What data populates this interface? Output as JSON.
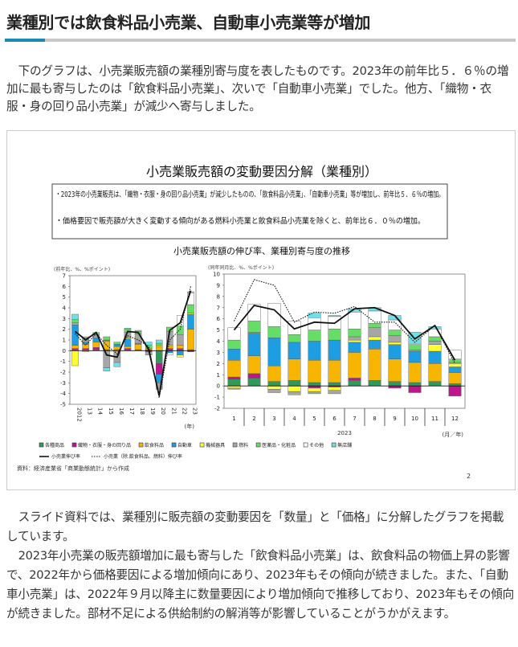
{
  "header": {
    "title": "業種別では飲食料品小売業、自動車小売業等が増加"
  },
  "intro": "下のグラフは、小売業販売額の業種別寄与度を表したものです。2023年の前年比５．６％の増加に最も寄与したのは「飲食料品小売業」、次いで「自動車小売業」でした。他方、「織物・衣服・身の回り品小売業」が減少へ寄与しました。",
  "figure": {
    "title": "小売業販売額の変動要因分解（業種別）",
    "notes": [
      "・2023年の小売業販売は、「織物・衣服・身の回り品小売業」が減少したものの、「飲食料品小売業」、「自動車小売業」等が増加し、前年比５．６％の増加。",
      "・価格要因で販売額が大きく変動する傾向がある燃料小売業と飲食料品小売業を除くと、前年比６．０％の増加。"
    ],
    "subtitle": "小売業販売額の伸び率、業種別寄与度の推移",
    "source": "資料：経済産業省「商業動態統計」から作成",
    "page": "2"
  },
  "chart_data": [
    {
      "type": "bar",
      "stacked": true,
      "unit_label": "(前年比、%、%ポイント)",
      "x_suffix": "(年)",
      "categories": [
        "2012",
        "13",
        "14",
        "15",
        "16",
        "17",
        "18",
        "19",
        "20",
        "21",
        "22",
        "23"
      ],
      "ylim": [
        -5,
        7
      ],
      "yticks": [
        -5,
        -4,
        -3,
        -2,
        -1,
        0,
        1,
        2,
        3,
        4,
        5,
        6,
        7
      ],
      "series": [
        {
          "name": "各種商品",
          "color": "#2e9b5a",
          "values": [
            0.1,
            0.1,
            0.1,
            0.1,
            0.1,
            0.1,
            0.1,
            0.1,
            -1.2,
            0.1,
            0.1,
            0.1
          ]
        },
        {
          "name": "織物・衣服・身の回り品",
          "color": "#c0158f",
          "values": [
            0.1,
            0.1,
            0.2,
            0,
            0,
            0.1,
            0,
            -0.1,
            -1.0,
            0.1,
            0.1,
            -0.1
          ]
        },
        {
          "name": "飲食料品",
          "color": "#f7b500",
          "values": [
            0.3,
            0.4,
            0.5,
            0.8,
            0.3,
            0.2,
            0.5,
            0.1,
            0.4,
            0.2,
            0.3,
            1.9
          ]
        },
        {
          "name": "自動車",
          "color": "#1e9ee0",
          "values": [
            1.9,
            0.2,
            0.4,
            0.1,
            0.2,
            0.7,
            0.1,
            0,
            -0.8,
            -0.2,
            -0.4,
            1.4
          ]
        },
        {
          "name": "機械器具",
          "color": "#ffff33",
          "values": [
            -1.4,
            -0.1,
            0.1,
            0,
            -0.1,
            0.1,
            0,
            0,
            0.1,
            0.1,
            -0.2,
            0.1
          ]
        },
        {
          "name": "燃料",
          "color": "#a6a6a6",
          "values": [
            0.2,
            0.2,
            0.2,
            -1.6,
            -1.0,
            0.5,
            0.9,
            -0.3,
            -0.6,
            1.3,
            1.0,
            0
          ]
        },
        {
          "name": "医薬品・化粧品",
          "color": "#66dd66",
          "values": [
            0.3,
            0.2,
            0.2,
            0.3,
            0.2,
            0.3,
            0.2,
            0.3,
            0.2,
            0.4,
            0.8,
            0.8
          ]
        },
        {
          "name": "その他",
          "color": "#ffffff",
          "values": [
            0,
            0,
            0,
            0,
            0,
            0,
            0,
            0,
            0,
            -0.2,
            1.0,
            1.1
          ]
        },
        {
          "name": "無店舗",
          "color": "#6fe0e8",
          "values": [
            0.5,
            0.1,
            0,
            -0.3,
            -0.4,
            0.1,
            0.1,
            0.3,
            0.3,
            0,
            0,
            0.1
          ]
        }
      ],
      "lines": [
        {
          "name": "小売業伸び率",
          "style": "solid",
          "values": [
            1.8,
            1.0,
            1.7,
            -0.4,
            -0.6,
            1.8,
            1.7,
            0.1,
            -4.2,
            1.9,
            2.6,
            5.6
          ]
        },
        {
          "name": "小売業（除.飲食料品、燃料）伸び率",
          "style": "dotted",
          "values": [
            1.6,
            0.5,
            1.6,
            0.5,
            -0.3,
            1.4,
            1.0,
            0.4,
            -4.4,
            1.0,
            2.0,
            6.0
          ]
        }
      ]
    },
    {
      "type": "bar",
      "stacked": true,
      "unit_label": "(同年同月比、%、%ポイント)",
      "x_suffix": "(月／年)",
      "year_label": "2023",
      "categories": [
        "1",
        "2",
        "3",
        "4",
        "5",
        "6",
        "7",
        "8",
        "9",
        "10",
        "11",
        "12"
      ],
      "ylim": [
        -2,
        10
      ],
      "yticks": [
        -2,
        -1,
        0,
        1,
        2,
        3,
        4,
        5,
        6,
        7,
        8,
        9,
        10
      ],
      "series": [
        {
          "name": "各種商品",
          "color": "#2e9b5a",
          "values": [
            0.6,
            0.7,
            0.4,
            0.5,
            0.3,
            0.3,
            0.5,
            0.5,
            0.4,
            0.3,
            0.4,
            0.2
          ]
        },
        {
          "name": "織物・衣服・身の回り品",
          "color": "#c0158f",
          "values": [
            0.2,
            0.4,
            0,
            0,
            -0.2,
            -0.1,
            0.2,
            0,
            -0.2,
            -0.6,
            0,
            -0.9
          ]
        },
        {
          "name": "飲食料品",
          "color": "#f7b500",
          "values": [
            1.5,
            1.6,
            1.4,
            1.9,
            2.0,
            2.0,
            2.3,
            2.8,
            2.0,
            1.8,
            1.6,
            1.0
          ]
        },
        {
          "name": "自動車",
          "color": "#1e9ee0",
          "values": [
            1.0,
            2.0,
            2.5,
            1.5,
            1.7,
            1.8,
            0.9,
            0.8,
            1.3,
            1.0,
            1.1,
            0.5
          ]
        },
        {
          "name": "機械器具",
          "color": "#ffff33",
          "values": [
            -0.2,
            0,
            -0.3,
            -0.5,
            -0.3,
            -0.3,
            0.2,
            0.3,
            0.2,
            0,
            0.6,
            0.3
          ]
        },
        {
          "name": "燃料",
          "color": "#a6a6a6",
          "values": [
            -0.1,
            0.1,
            -0.3,
            -0.3,
            -0.2,
            -0.3,
            0.3,
            0.8,
            0.6,
            0.1,
            0.3,
            0.1
          ]
        },
        {
          "name": "医薬品・化粧品",
          "color": "#66dd66",
          "values": [
            0.8,
            1.0,
            1.0,
            0.7,
            1.0,
            1.0,
            0.7,
            0.4,
            0.5,
            0.5,
            0.4,
            0.3
          ]
        },
        {
          "name": "その他",
          "color": "#ffffff",
          "values": [
            1.1,
            1.5,
            2.1,
            1.2,
            1.1,
            1.1,
            1.5,
            1.1,
            0.9,
            0.1,
            0.7,
            0.8
          ]
        },
        {
          "name": "無店舗",
          "color": "#6fe0e8",
          "values": [
            0,
            0,
            0,
            0,
            0.4,
            0.1,
            0.3,
            0.3,
            0.4,
            1.0,
            0.2,
            0
          ]
        }
      ],
      "lines": [
        {
          "name": "小売業伸び率",
          "style": "solid",
          "values": [
            5.0,
            7.2,
            6.8,
            5.1,
            5.7,
            5.6,
            6.9,
            7.0,
            6.3,
            4.2,
            5.4,
            2.3
          ]
        },
        {
          "name": "小売業（除.飲食料品、燃料）伸び率",
          "style": "dotted",
          "values": [
            5.8,
            9.5,
            9.0,
            5.7,
            6.6,
            6.5,
            7.1,
            5.7,
            5.7,
            3.9,
            5.4,
            2.0
          ]
        }
      ]
    }
  ],
  "closing": [
    "スライド資料では、業種別に販売額の変動要因を「数量」と「価格」に分解したグラフを掲載しています。",
    "2023年小売業の販売額増加に最も寄与した「飲食料品小売業」は、飲食料品の物価上昇の影響で、2022年から価格要因による増加傾向にあり、2023年もその傾向が続きました。また、「自動車小売業」は、2022年９月以降主に数量要因により増加傾向で推移しており、2023年もその傾向が続きました。部材不足による供給制約の解消等が影響していることがうかがえます。"
  ]
}
